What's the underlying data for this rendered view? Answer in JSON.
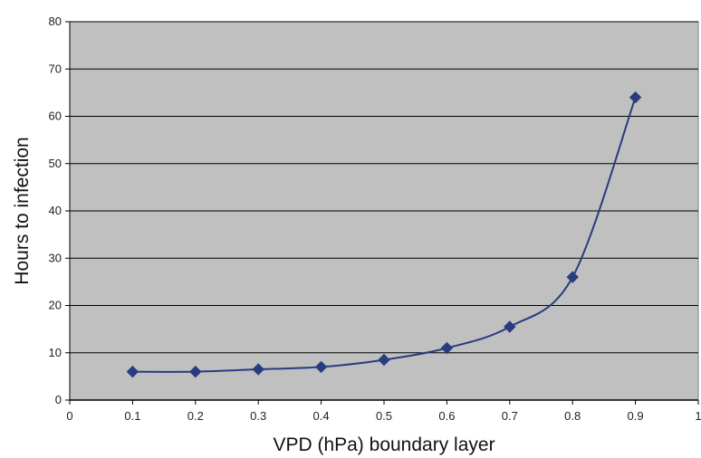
{
  "chart_data": {
    "type": "line",
    "title": "",
    "xlabel": "VPD (hPa) boundary layer",
    "ylabel": "Hours to infection",
    "xlim": [
      0,
      1
    ],
    "ylim": [
      0,
      80
    ],
    "xticks": [
      "0",
      "0.1",
      "0.2",
      "0.3",
      "0.4",
      "0.5",
      "0.6",
      "0.7",
      "0.8",
      "0.9",
      "1"
    ],
    "yticks": [
      "0",
      "10",
      "20",
      "30",
      "40",
      "50",
      "60",
      "70",
      "80"
    ],
    "grid": "horizontal",
    "legend": "none",
    "series": [
      {
        "x": [
          0.1,
          0.2,
          0.3,
          0.4,
          0.5,
          0.6,
          0.7,
          0.8,
          0.9
        ],
        "y": [
          6,
          6,
          6.5,
          7,
          8.5,
          11,
          15.5,
          26,
          64
        ],
        "marker": "diamond",
        "smooth": true
      }
    ],
    "colors": {
      "plot_background": "#c0c0c0",
      "gridline": "#000000",
      "series": "#283c7f"
    }
  }
}
